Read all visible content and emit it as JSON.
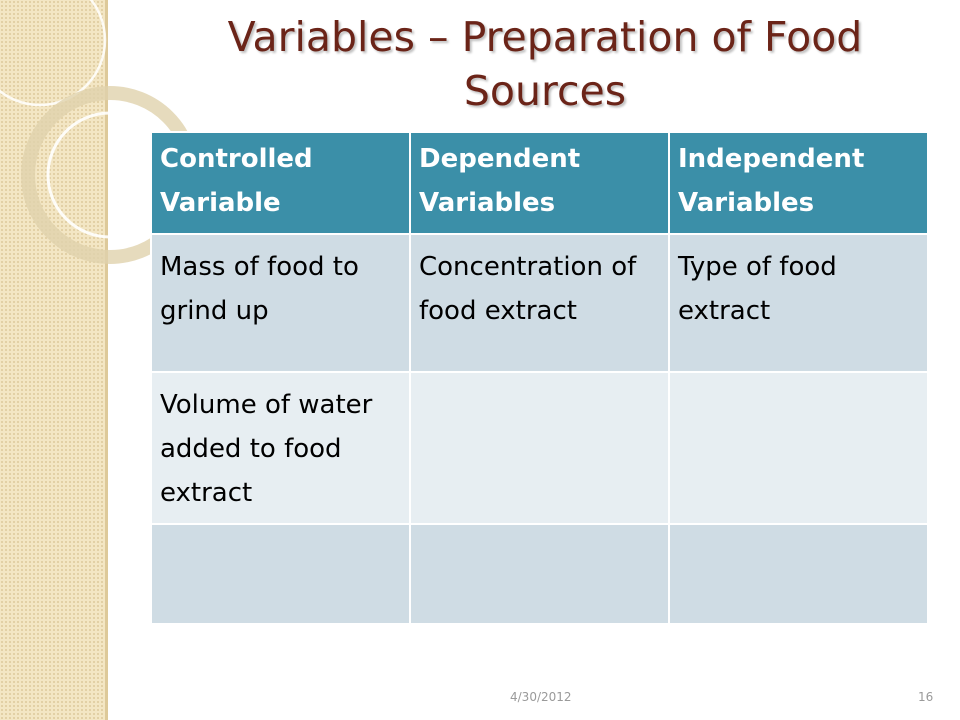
{
  "slide": {
    "title": "Variables – Preparation of Food Sources",
    "table": {
      "headers": [
        "Controlled Variable",
        "Dependent Variables",
        "Independent Variables"
      ],
      "rows": [
        [
          "Mass of food to grind up",
          "Concentration of food extract",
          "Type of food extract"
        ],
        [
          "Volume of water added to food extract",
          "",
          ""
        ],
        [
          "",
          "",
          ""
        ]
      ]
    },
    "footer": {
      "date": "4/30/2012",
      "page_number": "16"
    }
  },
  "colors": {
    "title": "#6b2418",
    "header_bg": "#3b8fa8",
    "row_dark": "#cfdce4",
    "row_light": "#e7eef2",
    "side_band": "#f3e6c4"
  }
}
